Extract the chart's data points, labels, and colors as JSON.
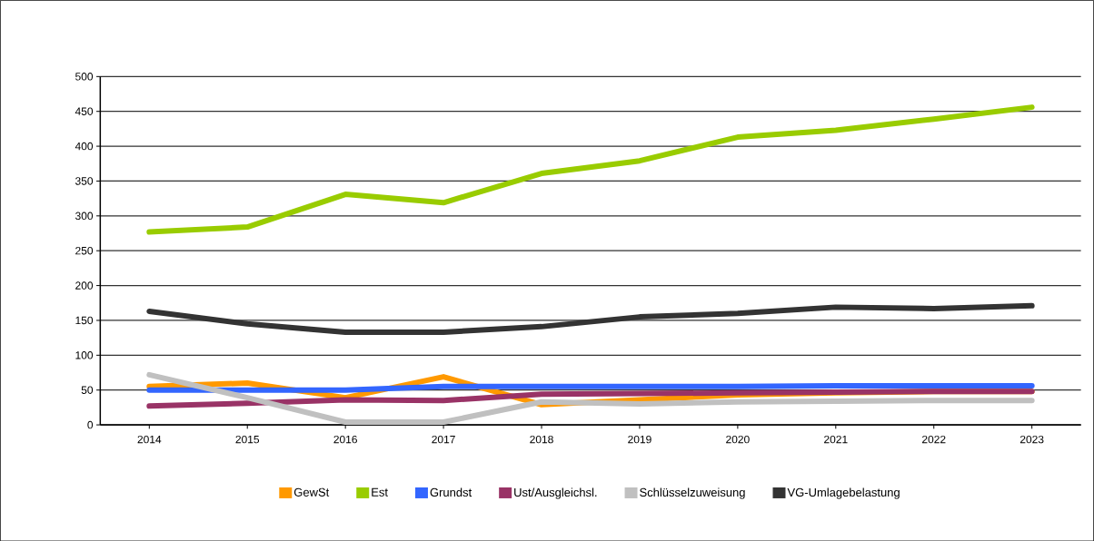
{
  "chart_data": {
    "type": "line",
    "categories": [
      "2014",
      "2015",
      "2016",
      "2017",
      "2018",
      "2019",
      "2020",
      "2021",
      "2022",
      "2023"
    ],
    "ylim": [
      0,
      500
    ],
    "yticks": [
      0,
      50,
      100,
      150,
      200,
      250,
      300,
      350,
      400,
      450,
      500
    ],
    "grid": "y",
    "legend": "bottom",
    "marker": "none",
    "line_style": "solid",
    "series": [
      {
        "name": "GewSt",
        "color": "#ff9900",
        "values": [
          55,
          60,
          39,
          69,
          29,
          36,
          43,
          46,
          48,
          48
        ]
      },
      {
        "name": "Est",
        "color": "#99cc00",
        "values": [
          277,
          284,
          331,
          319,
          361,
          379,
          413,
          423,
          439,
          456
        ]
      },
      {
        "name": "Grundst",
        "color": "#3366ff",
        "values": [
          50,
          50,
          50,
          55,
          55,
          55,
          55,
          56,
          56,
          56
        ]
      },
      {
        "name": "Ust/Ausgleichsl.",
        "color": "#993366",
        "values": [
          27,
          31,
          36,
          35,
          44,
          45,
          46,
          47,
          48,
          48
        ]
      },
      {
        "name": "Schlüsselzuweisung",
        "color": "#c0c0c0",
        "values": [
          72,
          39,
          4,
          4,
          33,
          30,
          33,
          34,
          35,
          35
        ]
      },
      {
        "name": "VG-Umlagebelastung",
        "color": "#333333",
        "values": [
          163,
          145,
          133,
          133,
          141,
          155,
          160,
          169,
          167,
          171
        ]
      }
    ]
  }
}
